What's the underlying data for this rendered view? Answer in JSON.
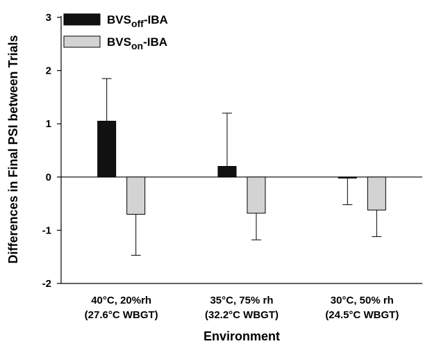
{
  "chart_data": {
    "type": "bar",
    "xlabel": "Environment",
    "ylabel": "Differences in Final PSI between Trials",
    "ylim": [
      -2,
      3
    ],
    "yticks": [
      -2,
      -1,
      0,
      1,
      2,
      3
    ],
    "categories": [
      [
        "40°C, 20%rh",
        "(27.6°C WBGT)"
      ],
      [
        "35°C, 75% rh",
        "(32.2°C WBGT)"
      ],
      [
        "30°C, 50% rh",
        "(24.5°C WBGT)"
      ]
    ],
    "series": [
      {
        "name": "BVSoff-IBA",
        "name_main": "BVS",
        "name_sub": "off",
        "name_suffix": "-IBA",
        "color": "#111111",
        "values": [
          1.05,
          0.2,
          -0.02
        ],
        "error": [
          0.8,
          1.0,
          0.5
        ]
      },
      {
        "name": "BVSon-IBA",
        "name_main": "BVS",
        "name_sub": "on",
        "name_suffix": "-IBA",
        "color": "#d3d3d3",
        "values": [
          -0.7,
          -0.68,
          -0.62
        ],
        "error": [
          0.77,
          0.5,
          0.5
        ]
      }
    ],
    "grid": false,
    "legend_position": "top-left"
  }
}
